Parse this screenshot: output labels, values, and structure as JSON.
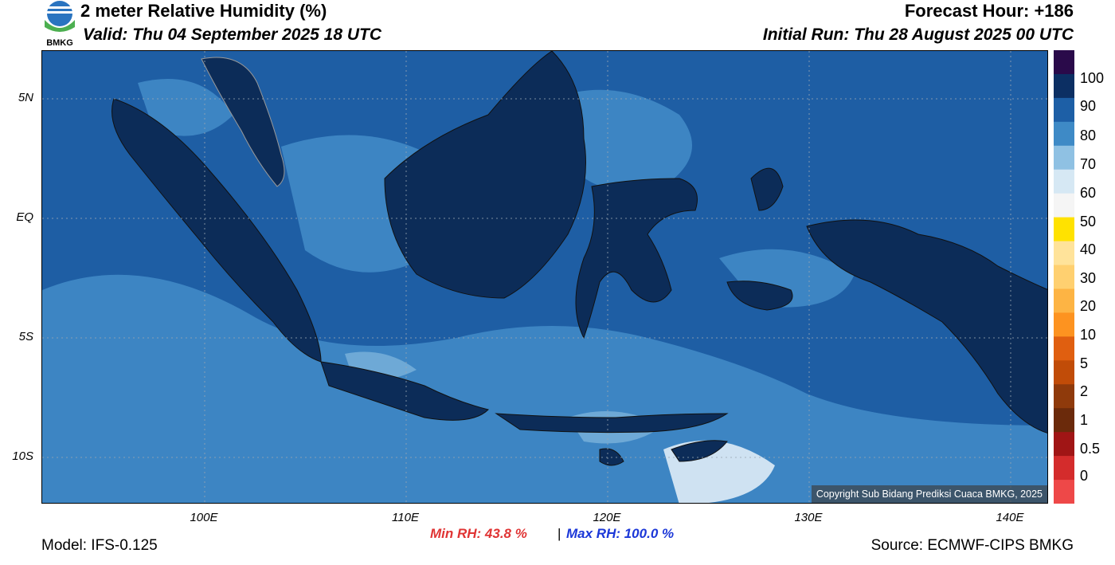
{
  "header": {
    "title": "2 meter Relative Humidity (%)",
    "valid": "Valid: Thu 04 September 2025 18 UTC",
    "forecast_hour": "Forecast Hour: +186",
    "initial_run": "Initial Run: Thu 28 August 2025 00 UTC"
  },
  "logo": {
    "text": "BMKG",
    "icon": "bmkg-logo"
  },
  "axes": {
    "lat_labels": [
      "5N",
      "EQ",
      "5S",
      "10S"
    ],
    "lon_labels": [
      "100E",
      "110E",
      "120E",
      "130E",
      "140E"
    ]
  },
  "colorbar": {
    "labels": [
      "100",
      "90",
      "80",
      "70",
      "60",
      "50",
      "40",
      "30",
      "20",
      "10",
      "5",
      "2",
      "1",
      "0.5",
      "0"
    ],
    "colors": [
      "#2a0a4a",
      "#0c2f63",
      "#1d5fa6",
      "#3e8ac6",
      "#8fc1e3",
      "#d6e8f4",
      "#f5f5f5",
      "#ffe200",
      "#ffe39a",
      "#ffd070",
      "#fdb444",
      "#fd9320",
      "#e05f10",
      "#c14c08",
      "#8f3a0b",
      "#6b2a0b",
      "#a01515",
      "#d42c2c",
      "#ee4848"
    ]
  },
  "stats": {
    "min_rh": "Min RH:  43.8 %",
    "separator": "|",
    "max_rh": "Max RH: 100.0 %",
    "min_color": "#e03434",
    "max_color": "#1c38d8"
  },
  "footer": {
    "model": "Model: IFS-0.125",
    "source": "Source: ECMWF-CIPS BMKG",
    "copyright": "Copyright Sub Bidang Prediksi Cuaca BMKG, 2025"
  },
  "map_colors": {
    "sea_dark": "#1e5ea4",
    "sea_mid": "#3d85c3",
    "sea_light": "#6ea9d6",
    "land": "#0c2c58",
    "dry": "#cfe2f2"
  }
}
